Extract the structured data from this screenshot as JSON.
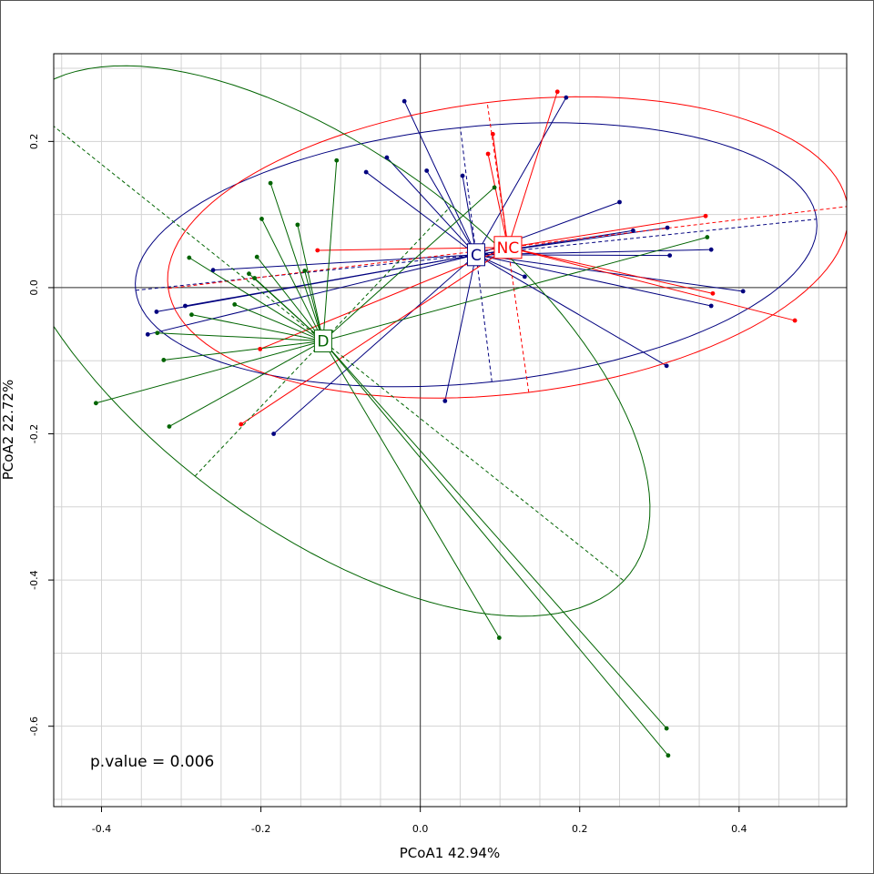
{
  "chart_data": {
    "type": "scatter",
    "xlabel": "PCoA1 42.94%",
    "ylabel": "PCoA2 22.72%",
    "xlim": [
      -0.46,
      0.535
    ],
    "ylim": [
      -0.71,
      0.32
    ],
    "x_ticks": [
      -0.4,
      -0.2,
      0.0,
      0.2,
      0.4
    ],
    "x_tick_labels": [
      "-0.4",
      "-0.2",
      "0.0",
      "0.2",
      "0.4"
    ],
    "y_ticks": [
      0.2,
      0.0,
      -0.2,
      -0.4,
      -0.6
    ],
    "y_tick_labels": [
      "0.2",
      "0.0",
      "-0.2",
      "-0.4",
      "-0.6"
    ],
    "grid": true,
    "annotation": "p.value = 0.006",
    "groups": [
      {
        "name": "C",
        "color": "#00007F",
        "centroid": [
          0.07,
          0.045
        ],
        "ellipse": {
          "cx": 0.07,
          "cy": 0.045,
          "rx": 0.43,
          "ry": 0.175,
          "angle_deg": 6.5
        },
        "points": [
          [
            -0.02,
            0.255
          ],
          [
            0.183,
            0.26
          ],
          [
            -0.068,
            0.158
          ],
          [
            -0.042,
            0.178
          ],
          [
            0.008,
            0.16
          ],
          [
            0.053,
            0.153
          ],
          [
            0.25,
            0.117
          ],
          [
            0.267,
            0.078
          ],
          [
            0.31,
            0.082
          ],
          [
            0.313,
            0.044
          ],
          [
            0.365,
            0.052
          ],
          [
            0.405,
            -0.005
          ],
          [
            0.365,
            -0.025
          ],
          [
            0.131,
            0.015
          ],
          [
            0.309,
            -0.107
          ],
          [
            0.031,
            -0.155
          ],
          [
            -0.184,
            -0.2
          ],
          [
            -0.26,
            0.024
          ],
          [
            -0.295,
            -0.025
          ],
          [
            -0.331,
            -0.033
          ],
          [
            -0.342,
            -0.064
          ]
        ]
      },
      {
        "name": "NC",
        "color": "#FF0000",
        "centroid": [
          0.11,
          0.055
        ],
        "ellipse": {
          "cx": 0.11,
          "cy": 0.055,
          "rx": 0.43,
          "ry": 0.2,
          "angle_deg": 7.5
        },
        "points": [
          [
            0.172,
            0.268
          ],
          [
            0.091,
            0.21
          ],
          [
            0.085,
            0.183
          ],
          [
            0.358,
            0.098
          ],
          [
            0.367,
            -0.008
          ],
          [
            0.47,
            -0.045
          ],
          [
            -0.129,
            0.051
          ],
          [
            -0.201,
            -0.084
          ],
          [
            -0.225,
            -0.187
          ]
        ]
      },
      {
        "name": "D",
        "color": "#006400",
        "centroid": [
          -0.122,
          -0.073
        ],
        "ellipse": {
          "cx": -0.122,
          "cy": -0.073,
          "rx": 0.5,
          "ry": 0.245,
          "angle_deg": -41
        },
        "points": [
          [
            -0.105,
            0.174
          ],
          [
            -0.188,
            0.143
          ],
          [
            -0.154,
            0.086
          ],
          [
            -0.199,
            0.094
          ],
          [
            -0.205,
            0.042
          ],
          [
            -0.215,
            0.019
          ],
          [
            -0.145,
            0.023
          ],
          [
            -0.208,
            0.013
          ],
          [
            -0.233,
            -0.023
          ],
          [
            -0.29,
            0.041
          ],
          [
            -0.287,
            -0.037
          ],
          [
            -0.33,
            -0.062
          ],
          [
            -0.322,
            -0.099
          ],
          [
            -0.407,
            -0.158
          ],
          [
            -0.315,
            -0.19
          ],
          [
            0.093,
            0.137
          ],
          [
            0.36,
            0.069
          ],
          [
            0.099,
            -0.479
          ],
          [
            0.309,
            -0.603
          ],
          [
            0.311,
            -0.64
          ]
        ]
      }
    ]
  }
}
